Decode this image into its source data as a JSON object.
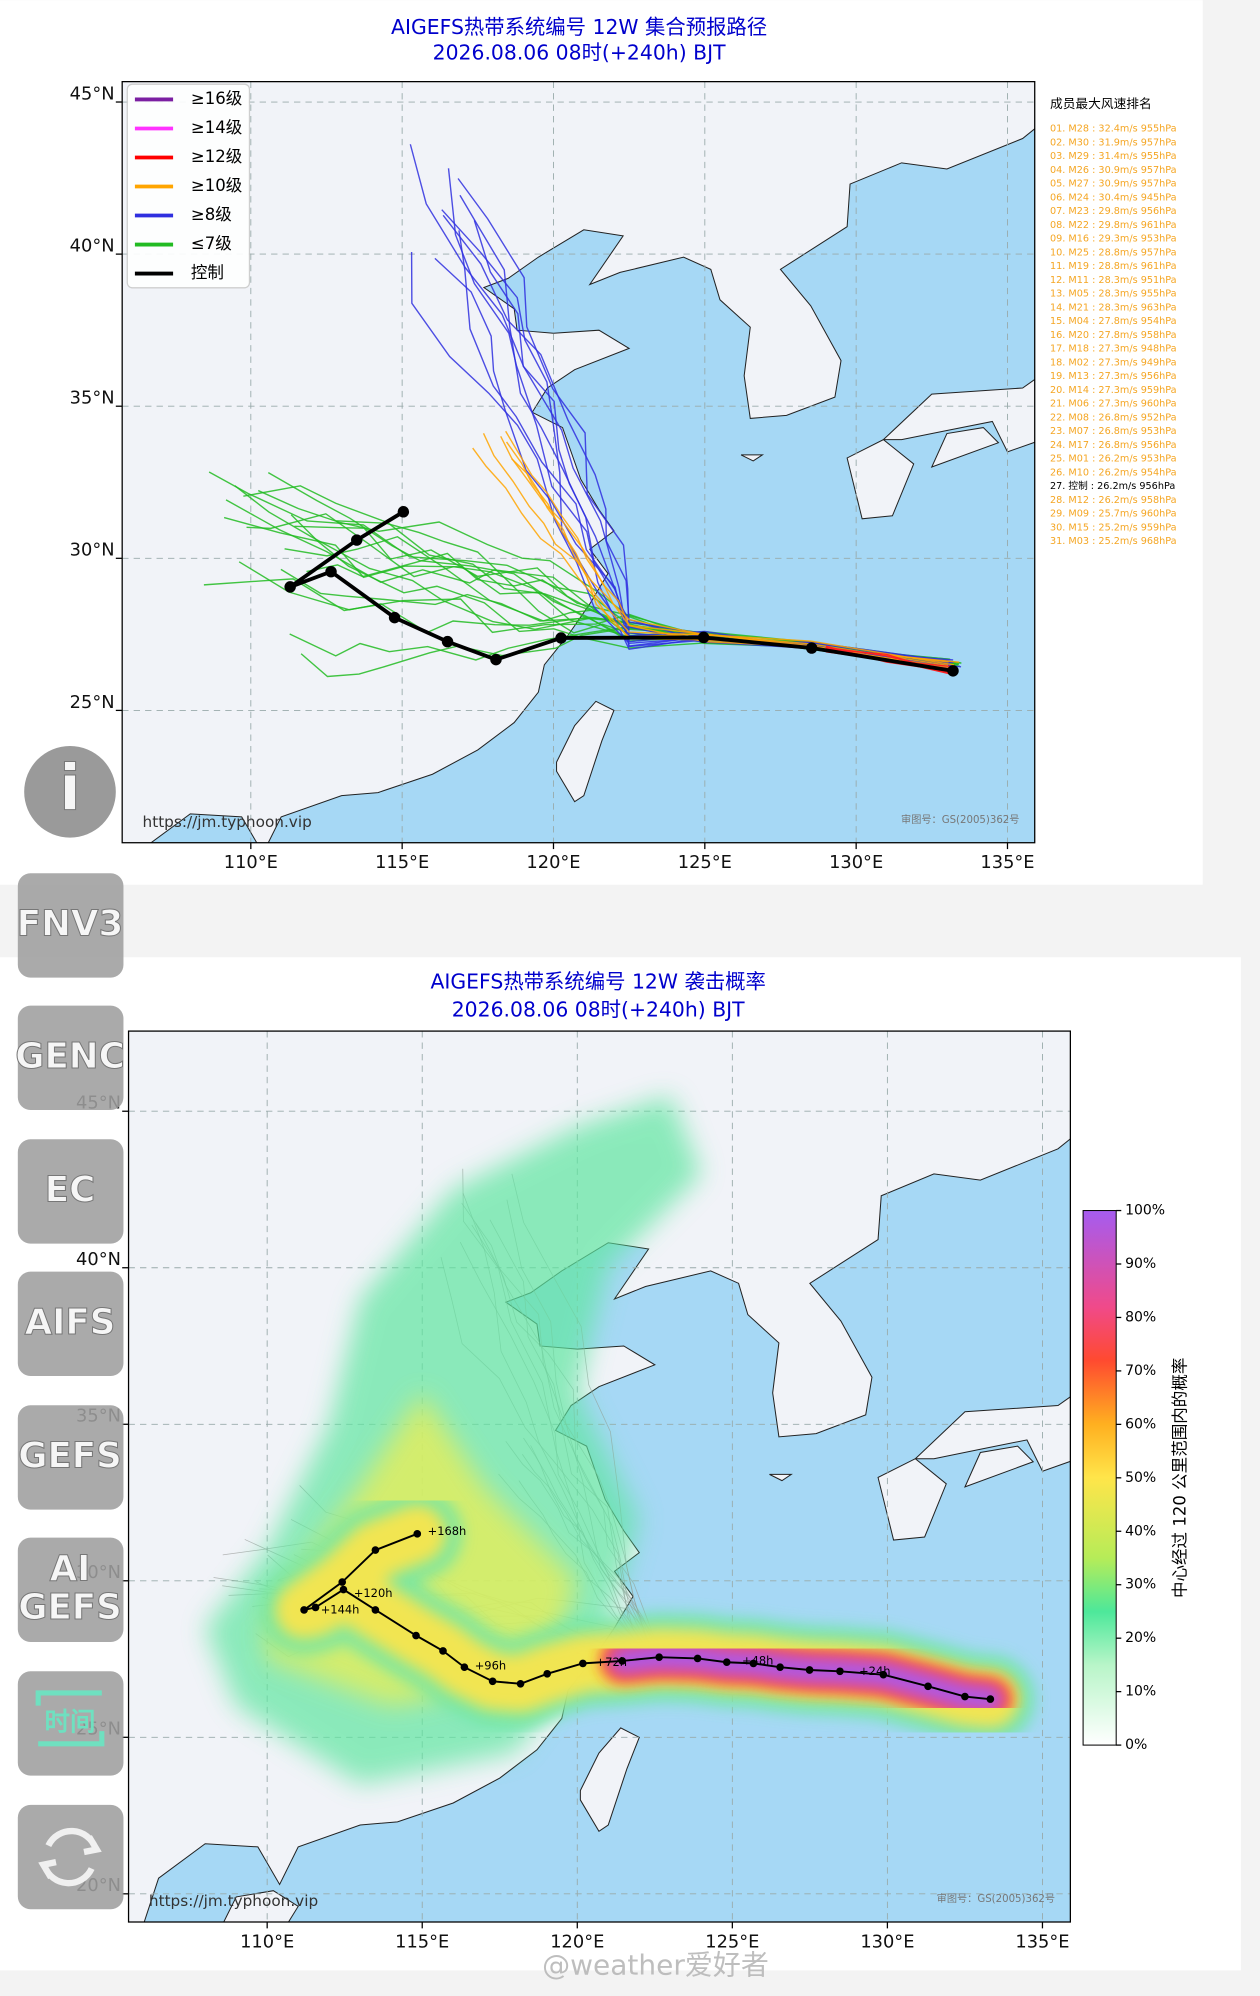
{
  "buttons": [
    {
      "lines": [
        "i"
      ]
    },
    {
      "lines": [
        "FNV3"
      ]
    },
    {
      "lines": [
        "GENC"
      ]
    },
    {
      "lines": [
        "EC"
      ]
    },
    {
      "lines": [
        "AIFS"
      ]
    },
    {
      "lines": [
        "GEFS"
      ]
    },
    {
      "lines": [
        "AI",
        "GEFS"
      ]
    },
    {
      "lines": [
        "时间"
      ]
    }
  ],
  "watermark": "@weather爱好者",
  "chart_data": [
    {
      "type": "map",
      "title": "AIGEFS热带系统编号 12W 集合预报路径",
      "subtitle": "2026.08.06 08时(+240h) BJT",
      "xlim": [
        105.75,
        135.9
      ],
      "ylim": [
        20.65,
        45.67
      ],
      "xticks": [
        {
          "value": 110,
          "label": "110°E"
        },
        {
          "value": 115,
          "label": "115°E"
        },
        {
          "value": 120,
          "label": "120°E"
        },
        {
          "value": 125,
          "label": "125°E"
        },
        {
          "value": 130,
          "label": "130°E"
        },
        {
          "value": 135,
          "label": "135°E"
        }
      ],
      "yticks": [
        {
          "value": 25,
          "label": "25°N"
        },
        {
          "value": 30,
          "label": "30°N"
        },
        {
          "value": 35,
          "label": "35°N"
        },
        {
          "value": 40,
          "label": "40°N"
        },
        {
          "value": 45,
          "label": "45°N"
        }
      ],
      "grid": true,
      "legend": [
        {
          "name": "≥16级",
          "color": "#7b1fa2"
        },
        {
          "name": "≥14级",
          "color": "#ff33ff"
        },
        {
          "name": "≥12级",
          "color": "#ff0000"
        },
        {
          "name": "≥10级",
          "color": "#ffa500"
        },
        {
          "name": "≥8级",
          "color": "#2f2fdf"
        },
        {
          "name": "≤7级",
          "color": "#22bb22"
        },
        {
          "name": "控制",
          "color": "#000000"
        }
      ],
      "ranking_title": "成员最大风速排名",
      "ranking": [
        {
          "text": "01. M28 : 32.4m/s 955hPa",
          "color": "#f5a623"
        },
        {
          "text": "02. M30 : 31.9m/s 957hPa",
          "color": "#f5a623"
        },
        {
          "text": "03. M29 : 31.4m/s 955hPa",
          "color": "#f5a623"
        },
        {
          "text": "04. M26 : 30.9m/s 957hPa",
          "color": "#f5a623"
        },
        {
          "text": "05. M27 : 30.9m/s 957hPa",
          "color": "#f5a623"
        },
        {
          "text": "06. M24 : 30.4m/s 945hPa",
          "color": "#f5a623"
        },
        {
          "text": "07. M23 : 29.8m/s 956hPa",
          "color": "#f5a623"
        },
        {
          "text": "08. M22 : 29.8m/s 961hPa",
          "color": "#f5a623"
        },
        {
          "text": "09. M16 : 29.3m/s 953hPa",
          "color": "#f5a623"
        },
        {
          "text": "10. M25 : 28.8m/s 957hPa",
          "color": "#f5a623"
        },
        {
          "text": "11. M19 : 28.8m/s 961hPa",
          "color": "#f5a623"
        },
        {
          "text": "12. M11 : 28.3m/s 951hPa",
          "color": "#f5a623"
        },
        {
          "text": "13. M05 : 28.3m/s 955hPa",
          "color": "#f5a623"
        },
        {
          "text": "14. M21 : 28.3m/s 963hPa",
          "color": "#f5a623"
        },
        {
          "text": "15. M04 : 27.8m/s 954hPa",
          "color": "#f5a623"
        },
        {
          "text": "16. M20 : 27.8m/s 958hPa",
          "color": "#f5a623"
        },
        {
          "text": "17. M18 : 27.3m/s 948hPa",
          "color": "#f5a623"
        },
        {
          "text": "18. M02 : 27.3m/s 949hPa",
          "color": "#f5a623"
        },
        {
          "text": "19. M13 : 27.3m/s 956hPa",
          "color": "#f5a623"
        },
        {
          "text": "20. M14 : 27.3m/s 959hPa",
          "color": "#f5a623"
        },
        {
          "text": "21. M06 : 27.3m/s 960hPa",
          "color": "#f5a623"
        },
        {
          "text": "22. M08 : 26.8m/s 952hPa",
          "color": "#f5a623"
        },
        {
          "text": "23. M07 : 26.8m/s 953hPa",
          "color": "#f5a623"
        },
        {
          "text": "24. M17 : 26.8m/s 956hPa",
          "color": "#f5a623"
        },
        {
          "text": "25. M01 : 26.2m/s 953hPa",
          "color": "#f5a623"
        },
        {
          "text": "26. M10 : 26.2m/s 954hPa",
          "color": "#f5a623"
        },
        {
          "text": "27. 控制 : 26.2m/s 956hPa",
          "color": "#000000"
        },
        {
          "text": "28. M12 : 26.2m/s 958hPa",
          "color": "#f5a623"
        },
        {
          "text": "29. M09 : 25.7m/s 960hPa",
          "color": "#f5a623"
        },
        {
          "text": "30. M15 : 25.2m/s 959hPa",
          "color": "#f5a623"
        },
        {
          "text": "31. M03 : 25.2m/s 968hPa",
          "color": "#f5a623"
        }
      ],
      "control_track": {
        "lon": [
          133.2,
          128.53,
          124.96,
          120.25,
          118.1,
          116.5,
          114.75,
          112.65,
          111.3,
          113.5,
          115.04
        ],
        "lat": [
          26.3,
          27.05,
          27.4,
          27.38,
          26.67,
          27.26,
          28.05,
          29.56,
          29.06,
          30.6,
          31.53
        ]
      },
      "source": "https://jm.typhoon.vip",
      "approval": "审图号：GS(2005)362号"
    },
    {
      "type": "map",
      "title": "AIGEFS热带系统编号 12W 袭击概率",
      "subtitle": "2026.08.06 08时(+240h) BJT",
      "xlim": [
        105.53,
        135.9
      ],
      "ylim": [
        19.1,
        47.56
      ],
      "xticks": [
        {
          "value": 110,
          "label": "110°E"
        },
        {
          "value": 115,
          "label": "115°E"
        },
        {
          "value": 120,
          "label": "120°E"
        },
        {
          "value": 125,
          "label": "125°E"
        },
        {
          "value": 130,
          "label": "130°E"
        },
        {
          "value": 135,
          "label": "135°E"
        }
      ],
      "yticks": [
        {
          "value": 20,
          "label": "20°N"
        },
        {
          "value": 25,
          "label": "25°N"
        },
        {
          "value": 30,
          "label": "30°N"
        },
        {
          "value": 35,
          "label": "35°N"
        },
        {
          "value": 40,
          "label": "40°N"
        },
        {
          "value": 45,
          "label": "45°N"
        }
      ],
      "grid": true,
      "colorbar": {
        "label": "中心经过 120 公里范围内的概率",
        "ticks": [
          {
            "value": 0,
            "label": "0%"
          },
          {
            "value": 10,
            "label": "10%"
          },
          {
            "value": 20,
            "label": "20%"
          },
          {
            "value": 30,
            "label": "30%"
          },
          {
            "value": 40,
            "label": "40%"
          },
          {
            "value": 50,
            "label": "50%"
          },
          {
            "value": 60,
            "label": "60%"
          },
          {
            "value": 70,
            "label": "70%"
          },
          {
            "value": 80,
            "label": "80%"
          },
          {
            "value": 90,
            "label": "90%"
          },
          {
            "value": 100,
            "label": "100%"
          }
        ]
      },
      "control_track": {
        "lon": [
          133.32,
          132.5,
          131.31,
          129.87,
          128.47,
          127.49,
          126.54,
          125.68,
          124.82,
          123.88,
          122.64,
          121.45,
          120.18,
          119.03,
          118.17,
          117.27,
          116.36,
          115.67,
          114.8,
          113.49,
          112.46,
          111.56,
          111.19,
          112.42,
          113.49,
          114.84
        ],
        "lat": [
          26.22,
          26.3,
          26.63,
          27.0,
          27.11,
          27.15,
          27.24,
          27.36,
          27.4,
          27.52,
          27.56,
          27.44,
          27.36,
          27.03,
          26.71,
          26.79,
          27.24,
          27.76,
          28.25,
          29.07,
          29.72,
          29.15,
          29.07,
          29.96,
          30.98,
          31.5
        ]
      },
      "track_labels": [
        "+168h",
        "+120h",
        "+144h",
        "+96h",
        "+72h",
        "+48h",
        "+24h"
      ],
      "source": "https://jm.typhoon.vip",
      "approval": "审图号：GS(2005)362号"
    }
  ]
}
